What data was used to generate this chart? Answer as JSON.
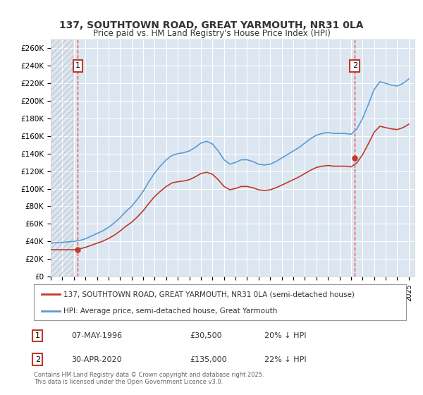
{
  "title1": "137, SOUTHTOWN ROAD, GREAT YARMOUTH, NR31 0LA",
  "title2": "Price paid vs. HM Land Registry's House Price Index (HPI)",
  "ylabel": "",
  "ylim": [
    0,
    270000
  ],
  "yticks": [
    0,
    20000,
    40000,
    60000,
    80000,
    100000,
    120000,
    140000,
    160000,
    180000,
    200000,
    220000,
    240000,
    260000
  ],
  "ytick_labels": [
    "£0",
    "£20K",
    "£40K",
    "£60K",
    "£80K",
    "£100K",
    "£120K",
    "£140K",
    "£160K",
    "£180K",
    "£200K",
    "£220K",
    "£240K",
    "£260K"
  ],
  "bg_color": "#dce6f1",
  "plot_bg": "#dce6f1",
  "grid_color": "#ffffff",
  "line_color_red": "#c0392b",
  "line_color_blue": "#5b9bd5",
  "marker1_date": 1996.35,
  "marker1_value": 30500,
  "marker2_date": 2020.33,
  "marker2_value": 135000,
  "legend_label_red": "137, SOUTHTOWN ROAD, GREAT YARMOUTH, NR31 0LA (semi-detached house)",
  "legend_label_blue": "HPI: Average price, semi-detached house, Great Yarmouth",
  "annotation1_num": "1",
  "annotation1_date": "07-MAY-1996",
  "annotation1_price": "£30,500",
  "annotation1_hpi": "20% ↓ HPI",
  "annotation2_num": "2",
  "annotation2_date": "30-APR-2020",
  "annotation2_price": "£135,000",
  "annotation2_hpi": "22% ↓ HPI",
  "footer": "Contains HM Land Registry data © Crown copyright and database right 2025.\nThis data is licensed under the Open Government Licence v3.0.",
  "xmin": 1994,
  "xmax": 2025.5,
  "hpi_blue": {
    "x": [
      1994.0,
      1994.5,
      1995.0,
      1995.5,
      1996.0,
      1996.5,
      1997.0,
      1997.5,
      1998.0,
      1998.5,
      1999.0,
      1999.5,
      2000.0,
      2000.5,
      2001.0,
      2001.5,
      2002.0,
      2002.5,
      2003.0,
      2003.5,
      2004.0,
      2004.5,
      2005.0,
      2005.5,
      2006.0,
      2006.5,
      2007.0,
      2007.5,
      2008.0,
      2008.5,
      2009.0,
      2009.5,
      2010.0,
      2010.5,
      2011.0,
      2011.5,
      2012.0,
      2012.5,
      2013.0,
      2013.5,
      2014.0,
      2014.5,
      2015.0,
      2015.5,
      2016.0,
      2016.5,
      2017.0,
      2017.5,
      2018.0,
      2018.5,
      2019.0,
      2019.5,
      2020.0,
      2020.5,
      2021.0,
      2021.5,
      2022.0,
      2022.5,
      2023.0,
      2023.5,
      2024.0,
      2024.5,
      2025.0
    ],
    "y": [
      38000,
      38500,
      39000,
      39500,
      40000,
      41000,
      43000,
      46000,
      49000,
      52000,
      56000,
      61000,
      67000,
      74000,
      80000,
      88000,
      97000,
      108000,
      118000,
      126000,
      133000,
      138000,
      140000,
      141000,
      143000,
      147000,
      152000,
      154000,
      151000,
      143000,
      133000,
      128000,
      130000,
      133000,
      133000,
      131000,
      128000,
      127000,
      128000,
      131000,
      135000,
      139000,
      143000,
      147000,
      152000,
      157000,
      161000,
      163000,
      164000,
      163000,
      163000,
      163000,
      162000,
      168000,
      180000,
      196000,
      213000,
      222000,
      220000,
      218000,
      217000,
      220000,
      225000
    ]
  },
  "price_red": {
    "x": [
      1996.35,
      2020.33
    ],
    "y": [
      30500,
      135000
    ]
  },
  "red_line": {
    "x": [
      1994.0,
      1994.5,
      1995.0,
      1995.5,
      1996.0,
      1996.5,
      1997.0,
      1997.5,
      1998.0,
      1998.5,
      1999.0,
      1999.5,
      2000.0,
      2000.5,
      2001.0,
      2001.5,
      2002.0,
      2002.5,
      2003.0,
      2003.5,
      2004.0,
      2004.5,
      2005.0,
      2005.5,
      2006.0,
      2006.5,
      2007.0,
      2007.5,
      2008.0,
      2008.5,
      2009.0,
      2009.5,
      2010.0,
      2010.5,
      2011.0,
      2011.5,
      2012.0,
      2012.5,
      2013.0,
      2013.5,
      2014.0,
      2014.5,
      2015.0,
      2015.5,
      2016.0,
      2016.5,
      2017.0,
      2017.5,
      2018.0,
      2018.5,
      2019.0,
      2019.5,
      2020.0,
      2020.5,
      2021.0,
      2021.5,
      2022.0,
      2022.5,
      2023.0,
      2023.5,
      2024.0,
      2024.5,
      2025.0
    ],
    "y": [
      30500,
      30500,
      30500,
      30500,
      30500,
      31500,
      33200,
      35500,
      37900,
      40200,
      43300,
      47100,
      51800,
      57200,
      61800,
      67900,
      74900,
      83400,
      91100,
      97200,
      102600,
      106600,
      108000,
      108800,
      110300,
      113500,
      117300,
      118800,
      116500,
      110300,
      102600,
      98800,
      100300,
      102600,
      102600,
      101100,
      98800,
      98000,
      98800,
      101100,
      104100,
      107200,
      110300,
      113500,
      117300,
      121100,
      124200,
      125700,
      126500,
      125700,
      125700,
      125700,
      124900,
      129500,
      138800,
      151200,
      164300,
      171200,
      169600,
      168200,
      167400,
      169600,
      173500
    ]
  }
}
